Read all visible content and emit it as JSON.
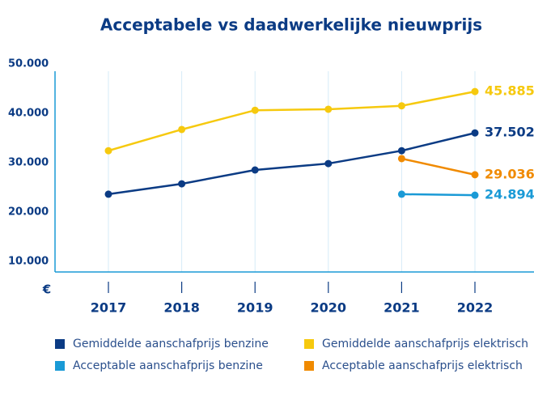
{
  "chart_data": {
    "type": "line",
    "title": "Acceptabele vs daadwerkelijke nieuwprijs",
    "ylabel": "€",
    "categories": [
      "2017",
      "2018",
      "2019",
      "2020",
      "2021",
      "2022"
    ],
    "ylim": [
      10000,
      50000
    ],
    "yticks": [
      {
        "value": 10000,
        "label": "10.000"
      },
      {
        "value": 20000,
        "label": "20.000"
      },
      {
        "value": 30000,
        "label": "30.000"
      },
      {
        "value": 40000,
        "label": "40.000"
      },
      {
        "value": 50000,
        "label": "50.000"
      }
    ],
    "grid": true,
    "series": [
      {
        "name": "Gemiddelde aanschafprijs benzine",
        "color": "#0b3b84",
        "values": [
          25100,
          27200,
          30000,
          31300,
          33900,
          37502
        ],
        "value_labels": [
          null,
          null,
          null,
          null,
          null,
          "37.502"
        ]
      },
      {
        "name": "Gemiddelde aanschafprijs elektrisch",
        "color": "#f6c90e",
        "values": [
          33900,
          38200,
          42100,
          42300,
          43000,
          45885
        ],
        "value_labels": [
          null,
          null,
          null,
          null,
          null,
          "45.885"
        ]
      },
      {
        "name": "Acceptable aanschafprijs benzine",
        "color": "#1a9ad6",
        "values": [
          null,
          null,
          null,
          null,
          25100,
          24894
        ],
        "value_labels": [
          null,
          null,
          null,
          null,
          null,
          "24.894"
        ]
      },
      {
        "name": "Acceptable aanschafprijs elektrisch",
        "color": "#f08a00",
        "values": [
          null,
          null,
          null,
          null,
          32300,
          29036
        ],
        "value_labels": [
          null,
          null,
          null,
          null,
          null,
          "29.036"
        ]
      }
    ]
  }
}
